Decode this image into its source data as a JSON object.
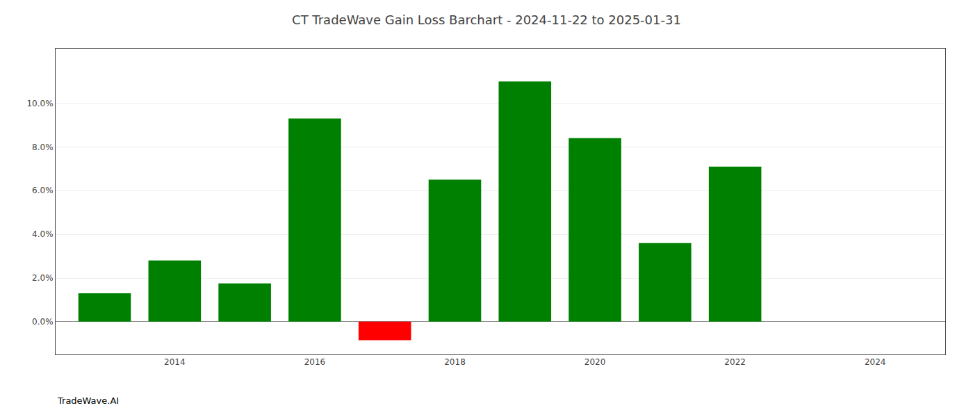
{
  "chart_data": {
    "type": "bar",
    "title": "CT TradeWave Gain Loss Barchart - 2024-11-22 to 2025-01-31",
    "annotations": [
      {
        "text": "TradeWave.AI"
      }
    ],
    "x": [
      2013,
      2014,
      2015,
      2016,
      2017,
      2018,
      2019,
      2020,
      2021,
      2022
    ],
    "values": [
      1.3,
      2.8,
      1.75,
      9.3,
      -0.85,
      6.5,
      11.0,
      8.4,
      3.6,
      7.1
    ],
    "colors": [
      "#008000",
      "#008000",
      "#008000",
      "#008000",
      "#ff0000",
      "#008000",
      "#008000",
      "#008000",
      "#008000",
      "#008000"
    ],
    "xlim": [
      2012.3,
      2025.0
    ],
    "xticks": [
      2014,
      2016,
      2018,
      2020,
      2022,
      2024
    ],
    "ylim": [
      -1.5,
      12.5
    ],
    "yticks": [
      {
        "value": 0.0,
        "label": "0.0%"
      },
      {
        "value": 2.0,
        "label": "2.0%"
      },
      {
        "value": 4.0,
        "label": "4.0%"
      },
      {
        "value": 6.0,
        "label": "6.0%"
      },
      {
        "value": 8.0,
        "label": "8.0%"
      },
      {
        "value": 10.0,
        "label": "10.0%"
      }
    ],
    "grid": true
  }
}
